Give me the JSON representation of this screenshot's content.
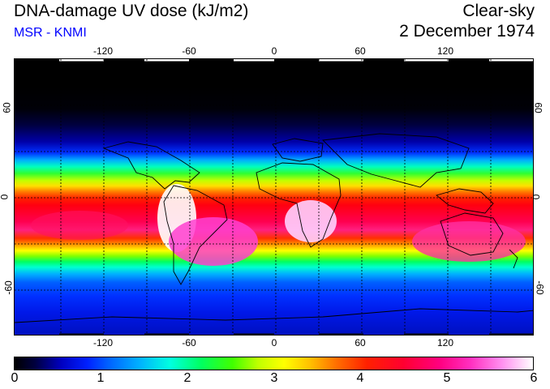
{
  "header": {
    "title": "DNA-damage UV dose (kJ/m2)",
    "credit": "MSR - KNMI",
    "sky_condition": "Clear-sky",
    "date": "2 December 1974"
  },
  "map": {
    "lon_ticks_top": [
      "-120",
      "-60",
      "0",
      "60",
      "120"
    ],
    "lon_ticks_bottom": [
      "-120",
      "-60",
      "0",
      "60",
      "120"
    ],
    "lat_ticks_left": [
      "60",
      "0",
      "-60"
    ],
    "lat_ticks_right": [
      "60",
      "0",
      "-60"
    ]
  },
  "colorbar": {
    "labels": [
      "0",
      "1",
      "2",
      "3",
      "4",
      "5",
      "6"
    ]
  }
}
